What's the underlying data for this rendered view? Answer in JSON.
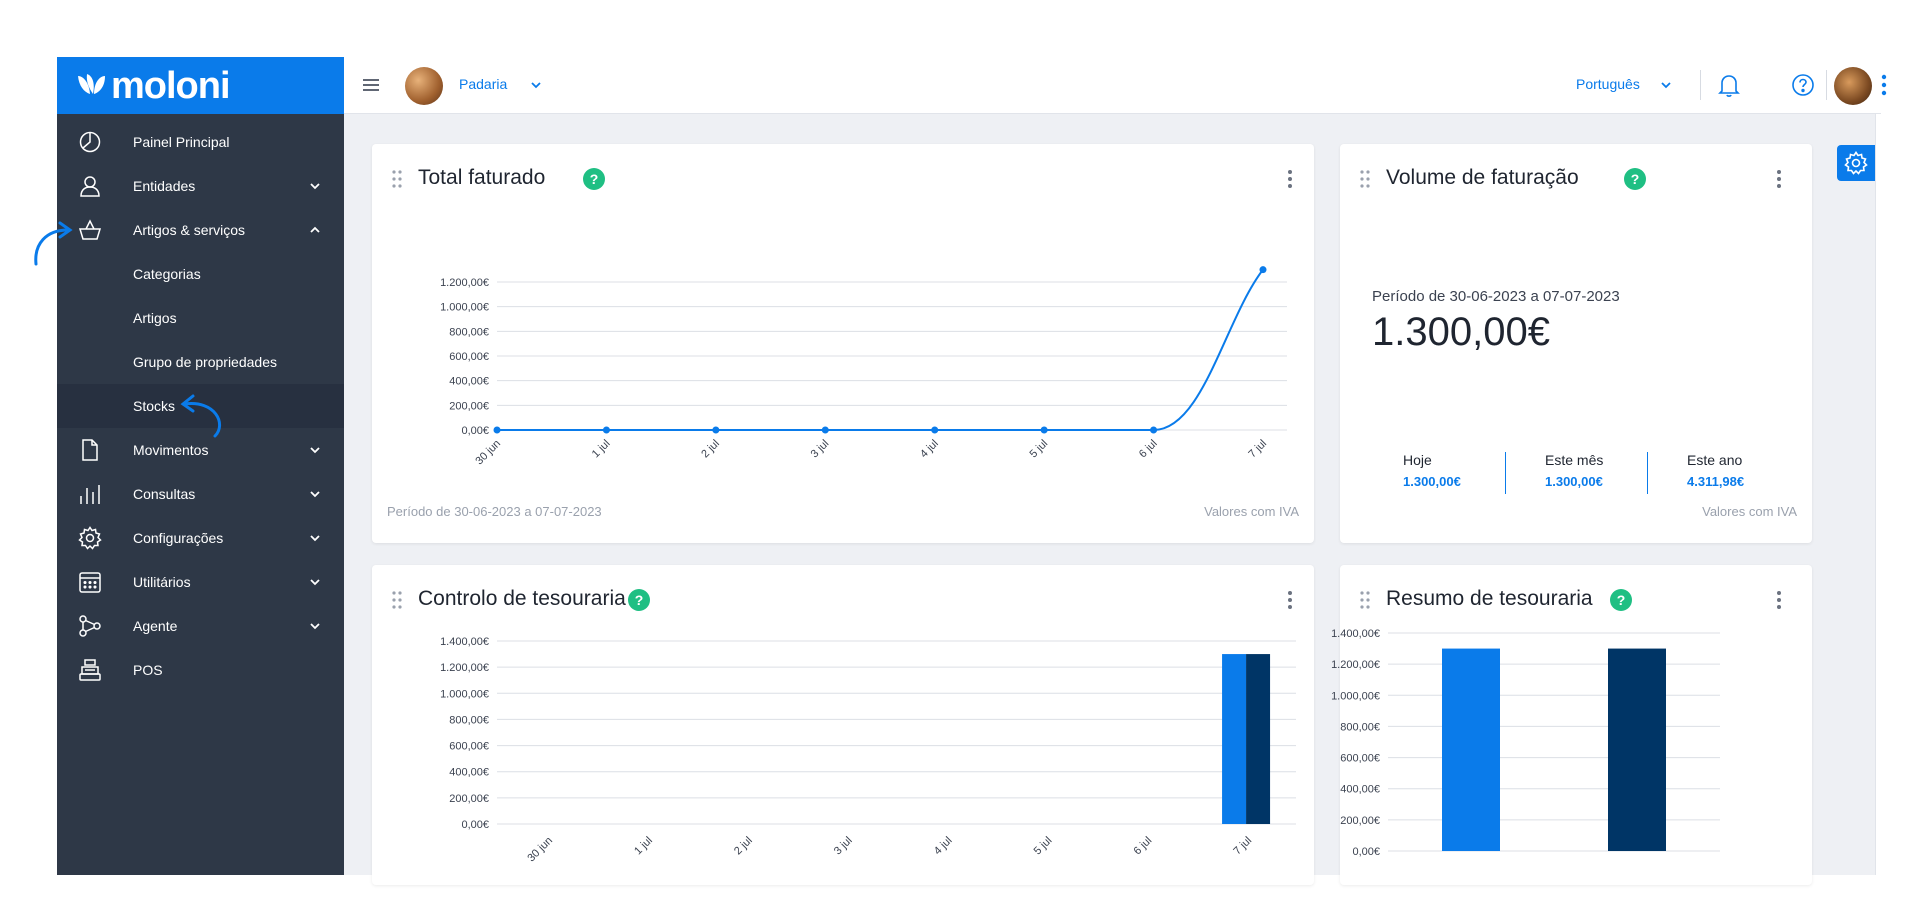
{
  "brand": {
    "logo_text": "moloni",
    "accent": "#0a7bea",
    "sidebar_bg": "#2e3847"
  },
  "header": {
    "company": "Padaria",
    "language": "Português",
    "icons": [
      "menu-icon",
      "bell-icon",
      "help-icon",
      "kebab-icon"
    ]
  },
  "sidebar": {
    "items": [
      {
        "label": "Painel Principal",
        "icon": "pie-chart-icon",
        "has_chevron": false
      },
      {
        "label": "Entidades",
        "icon": "user-icon",
        "has_chevron": true
      },
      {
        "label": "Artigos & serviços",
        "icon": "basket-icon",
        "has_chevron": true,
        "expanded": true
      },
      {
        "label": "Movimentos",
        "icon": "document-icon",
        "has_chevron": true
      },
      {
        "label": "Consultas",
        "icon": "bar-chart-icon",
        "has_chevron": true
      },
      {
        "label": "Configurações",
        "icon": "gear-icon",
        "has_chevron": true
      },
      {
        "label": "Utilitários",
        "icon": "calendar-icon",
        "has_chevron": true
      },
      {
        "label": "Agente",
        "icon": "workflow-icon",
        "has_chevron": true
      },
      {
        "label": "POS",
        "icon": "cash-register-icon",
        "has_chevron": false
      }
    ],
    "subitems": [
      {
        "label": "Categorias"
      },
      {
        "label": "Artigos"
      },
      {
        "label": "Grupo de propriedades"
      },
      {
        "label": "Stocks",
        "selected": true
      }
    ]
  },
  "cards": {
    "total_faturado": {
      "title": "Total faturado",
      "footer_left": "Período de 30-06-2023 a 07-07-2023",
      "footer_right": "Valores com IVA"
    },
    "volume_faturacao": {
      "title": "Volume de faturação",
      "period": "Período de 30-06-2023 a 07-07-2023",
      "amount": "1.300,00€",
      "stats": [
        {
          "label": "Hoje",
          "value": "1.300,00€"
        },
        {
          "label": "Este mês",
          "value": "1.300,00€"
        },
        {
          "label": "Este ano",
          "value": "4.311,98€"
        }
      ],
      "footer_right": "Valores com IVA"
    },
    "controlo_tesouraria": {
      "title": "Controlo de tesouraria"
    },
    "resumo_tesouraria": {
      "title": "Resumo de tesouraria"
    }
  },
  "chart_data": [
    {
      "type": "line",
      "categories": [
        "30 jun",
        "1 jul",
        "2 jul",
        "3 jul",
        "4 jul",
        "5 jul",
        "6 jul",
        "7 jul"
      ],
      "series": [
        {
          "values": [
            0,
            0,
            0,
            0,
            0,
            0,
            0,
            1300
          ],
          "color": "#0a7bea"
        }
      ],
      "ylim": [
        0,
        1200
      ],
      "yticks": [
        "0,00€",
        "200,00€",
        "400,00€",
        "600,00€",
        "800,00€",
        "1.000,00€",
        "1.200,00€"
      ],
      "grid": true
    },
    {
      "type": "bar",
      "categories": [
        "30 jun",
        "1 jul",
        "2 jul",
        "3 jul",
        "4 jul",
        "5 jul",
        "6 jul",
        "7 jul"
      ],
      "series": [
        {
          "values": [
            0,
            0,
            0,
            0,
            0,
            0,
            0,
            1300
          ],
          "color": "#0a7bea"
        },
        {
          "values": [
            0,
            0,
            0,
            0,
            0,
            0,
            0,
            1300
          ],
          "color": "#003566"
        }
      ],
      "ylim": [
        0,
        1400
      ],
      "yticks": [
        "0,00€",
        "200,00€",
        "400,00€",
        "600,00€",
        "800,00€",
        "1.000,00€",
        "1.200,00€",
        "1.400,00€"
      ],
      "grid": true
    },
    {
      "type": "bar",
      "categories": [
        "",
        ""
      ],
      "values": [
        1300,
        1300
      ],
      "colors": [
        "#0a7bea",
        "#003566"
      ],
      "ylim": [
        0,
        1400
      ],
      "yticks": [
        "0,00€",
        "200,00€",
        "400,00€",
        "600,00€",
        "800,00€",
        "1.000,00€",
        "1.200,00€",
        "1.400,00€"
      ],
      "grid": true
    }
  ]
}
